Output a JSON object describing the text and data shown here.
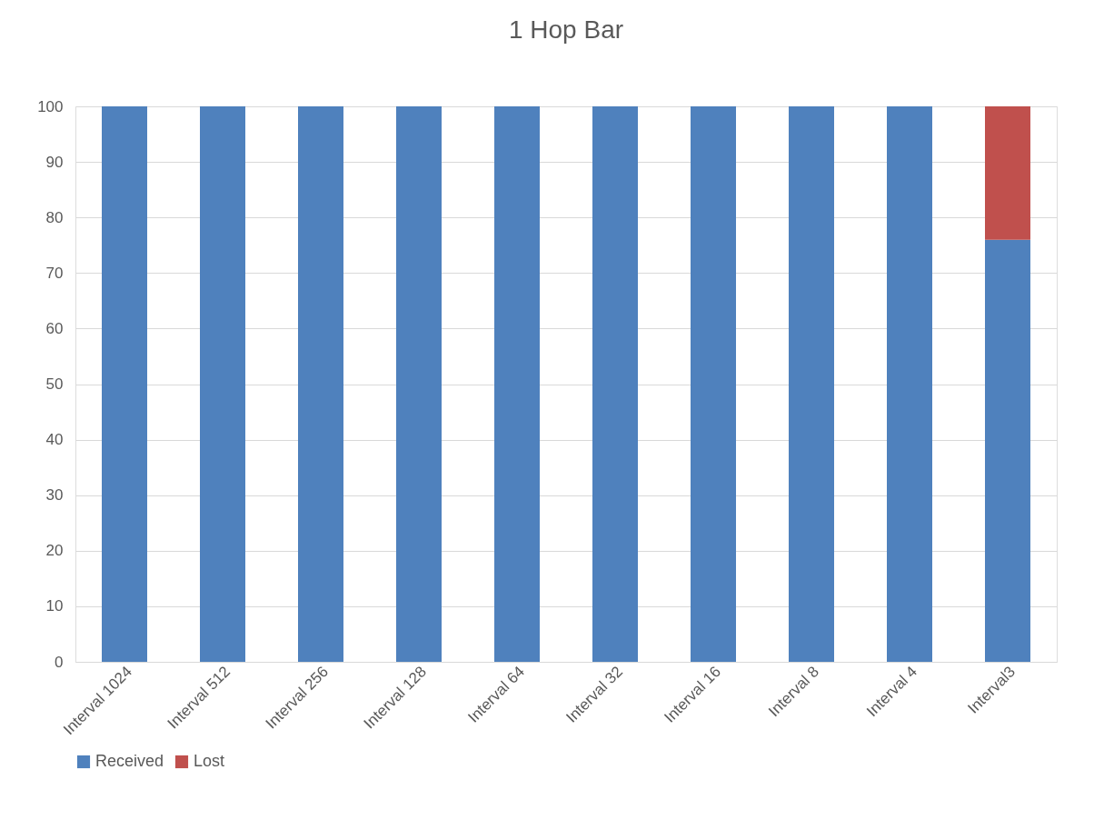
{
  "chart_data": {
    "type": "bar",
    "title": "1 Hop Bar",
    "stacked": true,
    "categories": [
      "Interval 1024",
      "Interval 512",
      "Interval 256",
      "Interval 128",
      "Interval 64",
      "Interval 32",
      "Interval 16",
      "Interval 8",
      "Interval 4",
      "Interval3"
    ],
    "series": [
      {
        "name": "Received",
        "color": "#4f81bd",
        "values": [
          100,
          100,
          100,
          100,
          100,
          100,
          100,
          100,
          100,
          76
        ]
      },
      {
        "name": "Lost",
        "color": "#c0504d",
        "values": [
          0,
          0,
          0,
          0,
          0,
          0,
          0,
          0,
          0,
          24
        ]
      }
    ],
    "ylim": [
      0,
      100
    ],
    "yticks": [
      0,
      10,
      20,
      30,
      40,
      50,
      60,
      70,
      80,
      90,
      100
    ],
    "grid": "y",
    "legend": "bottom"
  }
}
